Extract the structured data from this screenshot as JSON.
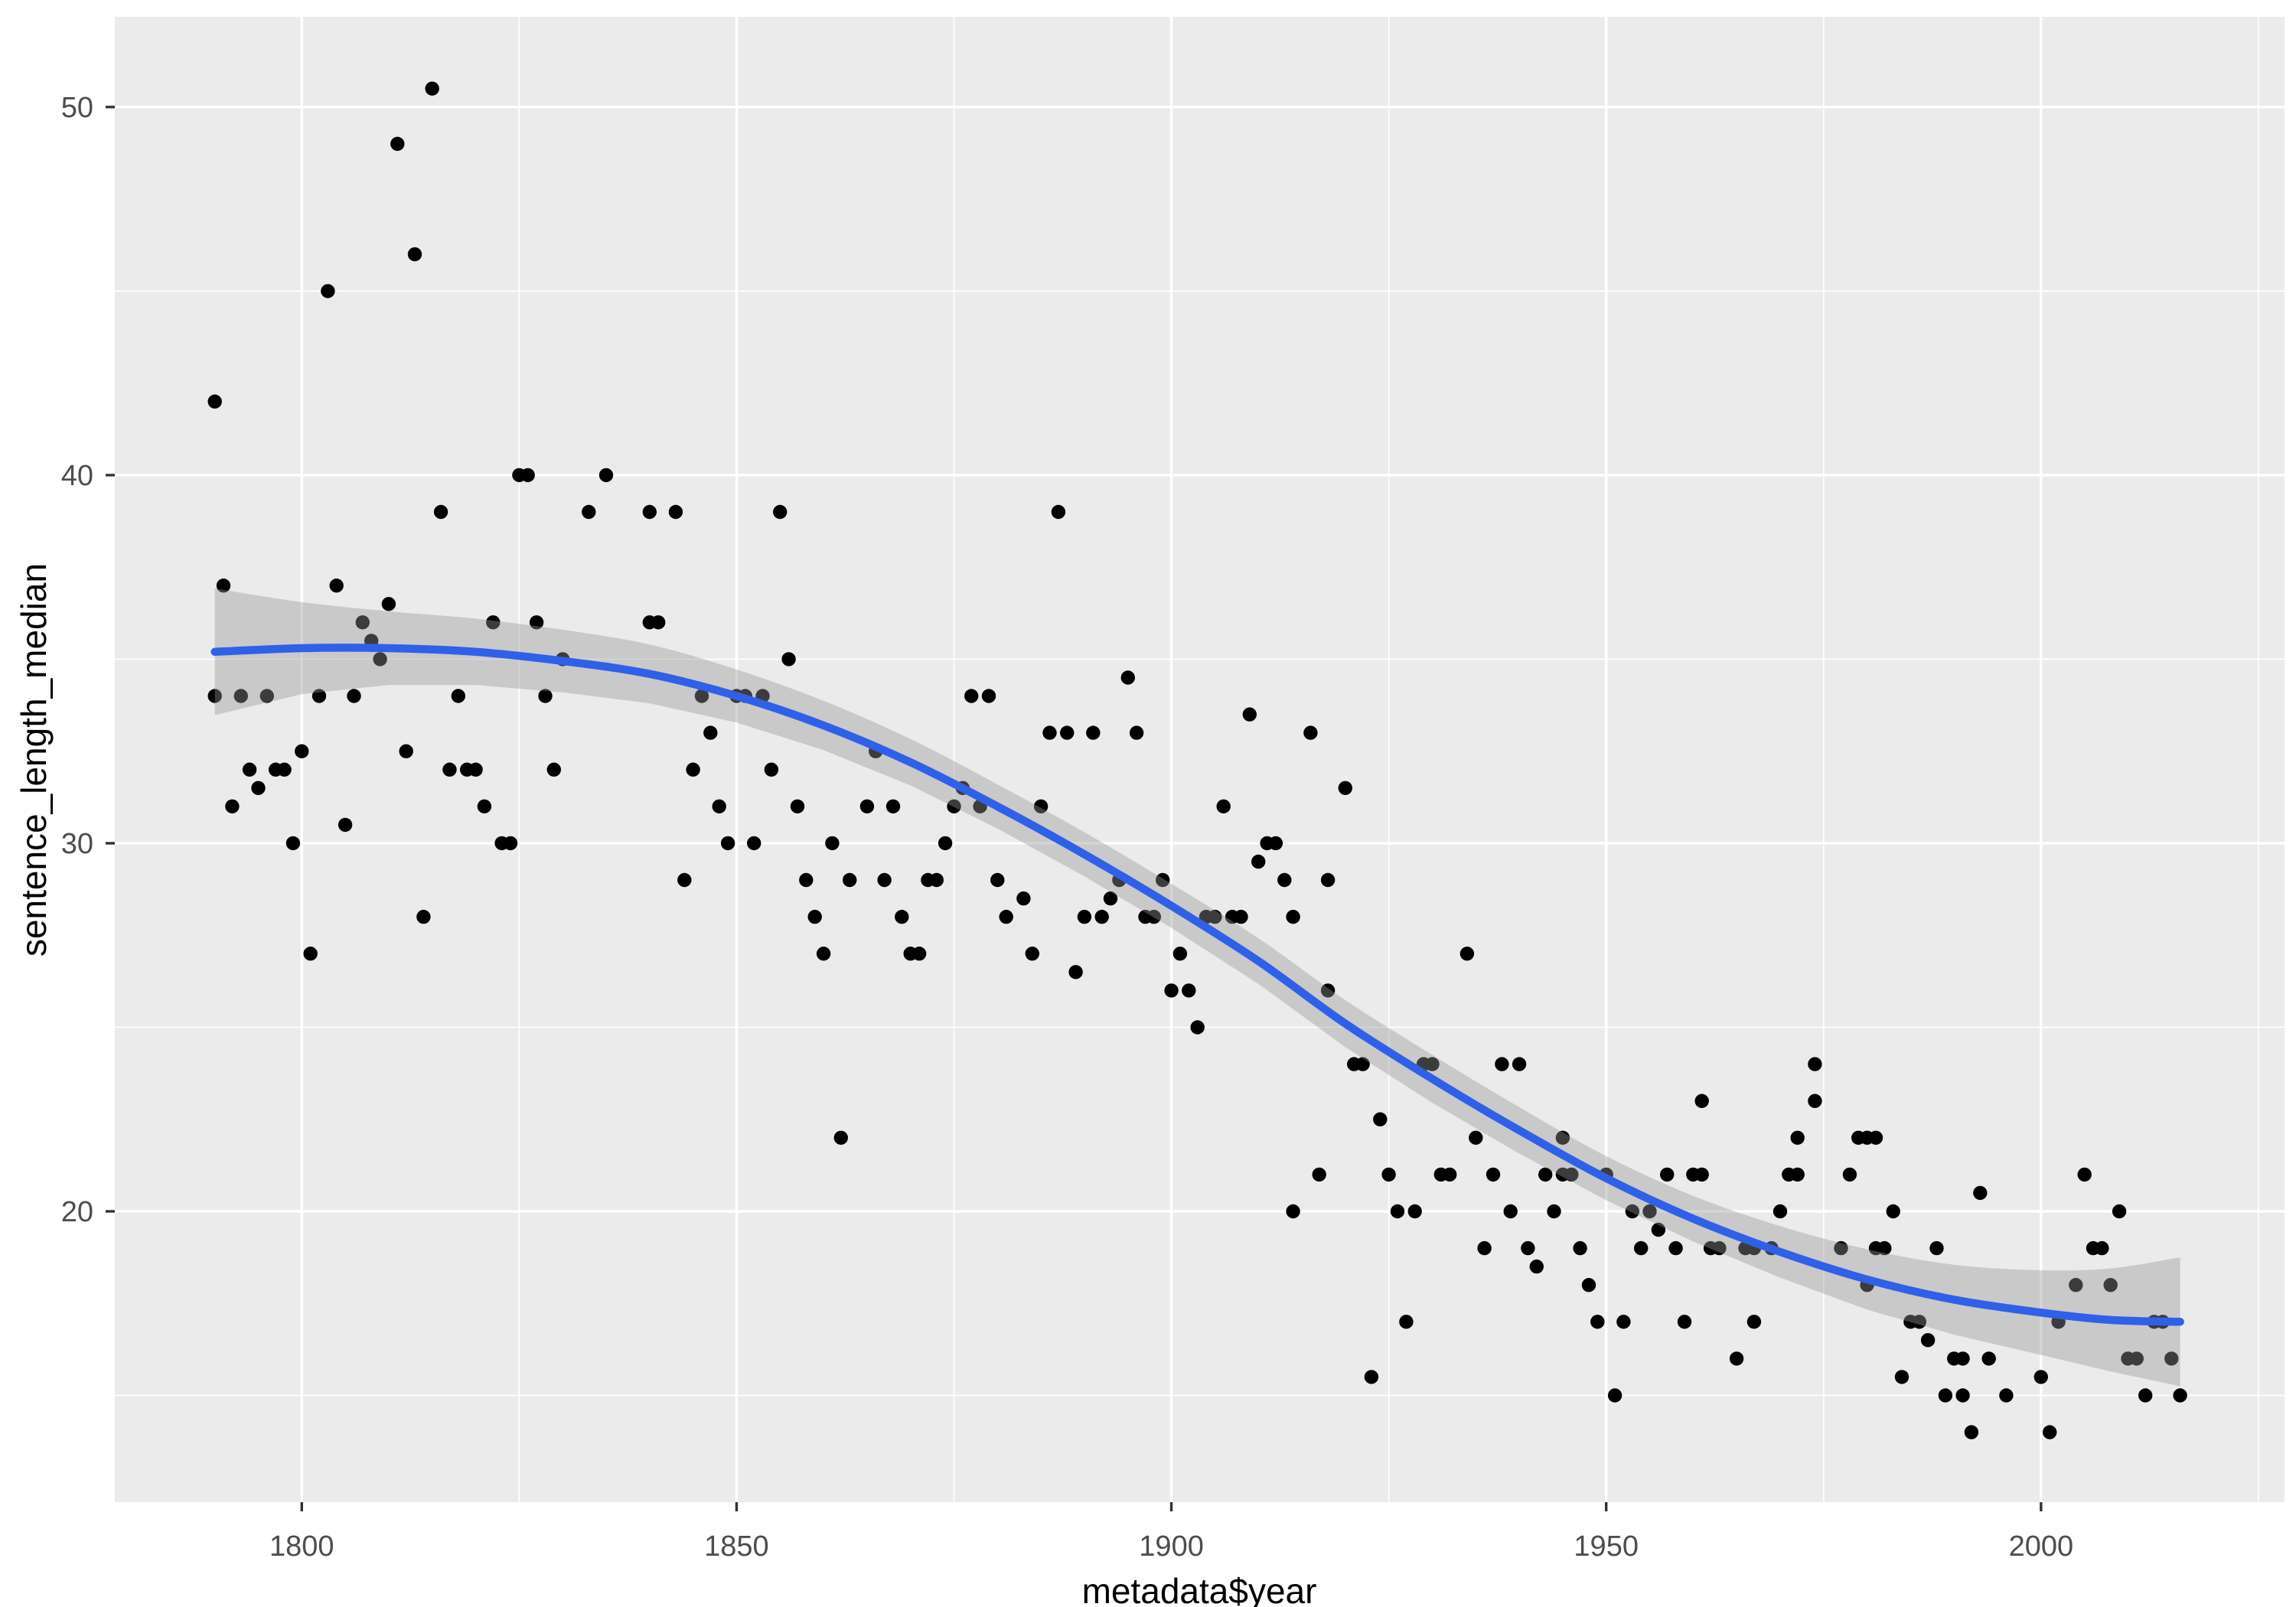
{
  "chart_data": {
    "type": "scatter",
    "title": "",
    "xlabel": "metadata$year",
    "ylabel": "sentence_length_median",
    "x_domain": [
      1778.5,
      2028
    ],
    "y_domain": [
      12.1,
      52.45
    ],
    "x_major_ticks": [
      1800,
      1850,
      1900,
      1950,
      2000
    ],
    "x_major_tick_labels": [
      "1800",
      "1850",
      "1900",
      "1950",
      "2000"
    ],
    "x_minor_ticks": [
      1825,
      1875,
      1925,
      1975,
      2025
    ],
    "y_major_ticks": [
      20,
      30,
      40,
      50
    ],
    "y_major_tick_labels": [
      "20",
      "30",
      "40",
      "50"
    ],
    "y_minor_ticks": [
      15,
      25,
      35,
      45
    ],
    "grid": "on",
    "legend": "none",
    "points": [
      [
        1790,
        42
      ],
      [
        1790,
        34
      ],
      [
        1791,
        37
      ],
      [
        1792,
        31
      ],
      [
        1793,
        34
      ],
      [
        1794,
        32
      ],
      [
        1795,
        31.5
      ],
      [
        1796,
        34
      ],
      [
        1797,
        32
      ],
      [
        1798,
        32
      ],
      [
        1799,
        30
      ],
      [
        1800,
        32.5
      ],
      [
        1801,
        27
      ],
      [
        1802,
        34
      ],
      [
        1803,
        45
      ],
      [
        1804,
        37
      ],
      [
        1805,
        30.5
      ],
      [
        1806,
        34
      ],
      [
        1807,
        36
      ],
      [
        1808,
        35.5
      ],
      [
        1809,
        35
      ],
      [
        1810,
        36.5
      ],
      [
        1811,
        49
      ],
      [
        1812,
        32.5
      ],
      [
        1813,
        46
      ],
      [
        1814,
        28
      ],
      [
        1815,
        50.5
      ],
      [
        1816,
        39
      ],
      [
        1817,
        32
      ],
      [
        1818,
        34
      ],
      [
        1819,
        32
      ],
      [
        1820,
        32
      ],
      [
        1821,
        31
      ],
      [
        1822,
        36
      ],
      [
        1823,
        30
      ],
      [
        1824,
        30
      ],
      [
        1825,
        40
      ],
      [
        1826,
        40
      ],
      [
        1827,
        36
      ],
      [
        1828,
        34
      ],
      [
        1829,
        32
      ],
      [
        1830,
        35
      ],
      [
        1833,
        39
      ],
      [
        1835,
        40
      ],
      [
        1840,
        39
      ],
      [
        1840,
        36
      ],
      [
        1841,
        36
      ],
      [
        1843,
        39
      ],
      [
        1844,
        29
      ],
      [
        1845,
        32
      ],
      [
        1846,
        34
      ],
      [
        1847,
        33
      ],
      [
        1848,
        31
      ],
      [
        1849,
        30
      ],
      [
        1850,
        34
      ],
      [
        1851,
        34
      ],
      [
        1852,
        30
      ],
      [
        1853,
        34
      ],
      [
        1854,
        32
      ],
      [
        1855,
        39
      ],
      [
        1856,
        35
      ],
      [
        1857,
        31
      ],
      [
        1858,
        29
      ],
      [
        1859,
        28
      ],
      [
        1860,
        27
      ],
      [
        1861,
        30
      ],
      [
        1862,
        22
      ],
      [
        1863,
        29
      ],
      [
        1865,
        31
      ],
      [
        1866,
        32.5
      ],
      [
        1867,
        29
      ],
      [
        1868,
        31
      ],
      [
        1869,
        28
      ],
      [
        1870,
        27
      ],
      [
        1871,
        27
      ],
      [
        1872,
        29
      ],
      [
        1873,
        29
      ],
      [
        1874,
        30
      ],
      [
        1875,
        31
      ],
      [
        1876,
        31.5
      ],
      [
        1877,
        34
      ],
      [
        1878,
        31
      ],
      [
        1879,
        34
      ],
      [
        1880,
        29
      ],
      [
        1881,
        28
      ],
      [
        1883,
        28.5
      ],
      [
        1884,
        27
      ],
      [
        1885,
        31
      ],
      [
        1886,
        33
      ],
      [
        1887,
        39
      ],
      [
        1888,
        33
      ],
      [
        1889,
        26.5
      ],
      [
        1890,
        28
      ],
      [
        1891,
        33
      ],
      [
        1892,
        28
      ],
      [
        1893,
        28.5
      ],
      [
        1894,
        29
      ],
      [
        1895,
        34.5
      ],
      [
        1896,
        33
      ],
      [
        1897,
        28
      ],
      [
        1898,
        28
      ],
      [
        1899,
        29
      ],
      [
        1900,
        26
      ],
      [
        1901,
        27
      ],
      [
        1902,
        26
      ],
      [
        1903,
        25
      ],
      [
        1904,
        28
      ],
      [
        1905,
        28
      ],
      [
        1906,
        31
      ],
      [
        1907,
        28
      ],
      [
        1908,
        28
      ],
      [
        1909,
        33.5
      ],
      [
        1910,
        29.5
      ],
      [
        1911,
        30
      ],
      [
        1912,
        30
      ],
      [
        1913,
        29
      ],
      [
        1914,
        28
      ],
      [
        1914,
        20
      ],
      [
        1916,
        33
      ],
      [
        1917,
        21
      ],
      [
        1918,
        29
      ],
      [
        1918,
        26
      ],
      [
        1920,
        31.5
      ],
      [
        1921,
        24
      ],
      [
        1922,
        24
      ],
      [
        1923,
        15.5
      ],
      [
        1924,
        22.5
      ],
      [
        1925,
        21
      ],
      [
        1926,
        20
      ],
      [
        1927,
        17
      ],
      [
        1928,
        20
      ],
      [
        1929,
        24
      ],
      [
        1930,
        24
      ],
      [
        1931,
        21
      ],
      [
        1932,
        21
      ],
      [
        1934,
        27
      ],
      [
        1935,
        22
      ],
      [
        1936,
        19
      ],
      [
        1937,
        21
      ],
      [
        1938,
        24
      ],
      [
        1939,
        20
      ],
      [
        1940,
        24
      ],
      [
        1941,
        19
      ],
      [
        1942,
        18.5
      ],
      [
        1943,
        21
      ],
      [
        1944,
        20
      ],
      [
        1945,
        22
      ],
      [
        1945,
        21
      ],
      [
        1946,
        21
      ],
      [
        1947,
        19
      ],
      [
        1948,
        18
      ],
      [
        1949,
        17
      ],
      [
        1950,
        21
      ],
      [
        1951,
        15
      ],
      [
        1952,
        17
      ],
      [
        1953,
        20
      ],
      [
        1954,
        19
      ],
      [
        1955,
        20
      ],
      [
        1956,
        19.5
      ],
      [
        1957,
        21
      ],
      [
        1958,
        19
      ],
      [
        1959,
        17
      ],
      [
        1960,
        21
      ],
      [
        1961,
        23
      ],
      [
        1961,
        21
      ],
      [
        1962,
        19
      ],
      [
        1963,
        19
      ],
      [
        1965,
        16
      ],
      [
        1966,
        19
      ],
      [
        1967,
        19
      ],
      [
        1967,
        17
      ],
      [
        1969,
        19
      ],
      [
        1970,
        20
      ],
      [
        1971,
        21
      ],
      [
        1972,
        22
      ],
      [
        1972,
        21
      ],
      [
        1974,
        24
      ],
      [
        1974,
        23
      ],
      [
        1977,
        19
      ],
      [
        1978,
        21
      ],
      [
        1979,
        22
      ],
      [
        1980,
        22
      ],
      [
        1980,
        18
      ],
      [
        1981,
        22
      ],
      [
        1981,
        19
      ],
      [
        1982,
        19
      ],
      [
        1983,
        20
      ],
      [
        1984,
        15.5
      ],
      [
        1985,
        17
      ],
      [
        1986,
        17
      ],
      [
        1987,
        16.5
      ],
      [
        1988,
        19
      ],
      [
        1989,
        15
      ],
      [
        1990,
        16
      ],
      [
        1991,
        16
      ],
      [
        1991,
        15
      ],
      [
        1992,
        14
      ],
      [
        1993,
        20.5
      ],
      [
        1994,
        16
      ],
      [
        1996,
        15
      ],
      [
        2000,
        15.5
      ],
      [
        2001,
        14
      ],
      [
        2002,
        17
      ],
      [
        2004,
        18
      ],
      [
        2005,
        21
      ],
      [
        2006,
        19
      ],
      [
        2007,
        19
      ],
      [
        2008,
        18
      ],
      [
        2009,
        20
      ],
      [
        2010,
        16
      ],
      [
        2011,
        16
      ],
      [
        2012,
        15
      ],
      [
        2013,
        17
      ],
      [
        2014,
        17
      ],
      [
        2015,
        16
      ],
      [
        2016,
        15
      ]
    ],
    "smooth_line": [
      [
        1790,
        35.2
      ],
      [
        1800,
        35.3
      ],
      [
        1810,
        35.3
      ],
      [
        1820,
        35.2
      ],
      [
        1830,
        34.95
      ],
      [
        1840,
        34.6
      ],
      [
        1850,
        34.0
      ],
      [
        1860,
        33.2
      ],
      [
        1870,
        32.2
      ],
      [
        1880,
        31.0
      ],
      [
        1890,
        29.7
      ],
      [
        1900,
        28.3
      ],
      [
        1910,
        26.8
      ],
      [
        1920,
        25.1
      ],
      [
        1930,
        23.6
      ],
      [
        1940,
        22.2
      ],
      [
        1950,
        20.9
      ],
      [
        1960,
        19.8
      ],
      [
        1970,
        18.9
      ],
      [
        1980,
        18.15
      ],
      [
        1990,
        17.6
      ],
      [
        2000,
        17.25
      ],
      [
        2008,
        17.05
      ],
      [
        2016,
        17.0
      ]
    ],
    "band_halfwidth": [
      [
        1790,
        1.72
      ],
      [
        1800,
        1.25
      ],
      [
        1810,
        1.0
      ],
      [
        1820,
        0.9
      ],
      [
        1830,
        0.85
      ],
      [
        1840,
        0.8
      ],
      [
        1850,
        0.72
      ],
      [
        1860,
        0.67
      ],
      [
        1870,
        0.63
      ],
      [
        1880,
        0.6
      ],
      [
        1890,
        0.6
      ],
      [
        1900,
        0.6
      ],
      [
        1910,
        0.62
      ],
      [
        1920,
        0.64
      ],
      [
        1930,
        0.65
      ],
      [
        1940,
        0.63
      ],
      [
        1950,
        0.6
      ],
      [
        1960,
        0.62
      ],
      [
        1970,
        0.7
      ],
      [
        1980,
        0.82
      ],
      [
        1990,
        0.95
      ],
      [
        2000,
        1.15
      ],
      [
        2008,
        1.4
      ],
      [
        2016,
        1.75
      ]
    ],
    "colors": {
      "panel_background": "#EBEBEB",
      "grid": "#FFFFFF",
      "point": "#000000",
      "smooth_line": "#3060E8",
      "band": "#969696",
      "tick_mark": "#333333",
      "tick_label": "#4D4D4D",
      "axis_title": "#000000"
    }
  }
}
